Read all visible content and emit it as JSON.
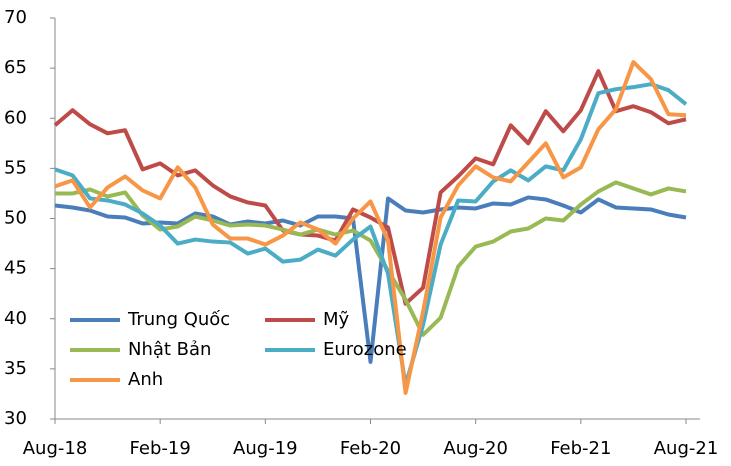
{
  "chart_data": {
    "type": "line",
    "categories": [
      "Aug-18",
      null,
      null,
      null,
      null,
      null,
      "Feb-19",
      null,
      null,
      null,
      null,
      null,
      "Aug-19",
      null,
      null,
      null,
      null,
      null,
      "Feb-20",
      null,
      null,
      null,
      null,
      null,
      "Aug-20",
      null,
      null,
      null,
      null,
      null,
      "Feb-21",
      null,
      null,
      null,
      null,
      null,
      "Aug-21"
    ],
    "series": [
      {
        "name": "Trung Quốc",
        "color": "#4a7ebb",
        "values": [
          51.3,
          51.1,
          50.8,
          50.2,
          50.1,
          49.5,
          49.6,
          49.5,
          50.5,
          50.2,
          49.4,
          49.7,
          49.5,
          49.8,
          49.3,
          50.2,
          50.2,
          50.0,
          35.7,
          52.0,
          50.8,
          50.6,
          50.9,
          51.1,
          51.0,
          51.5,
          51.4,
          52.1,
          51.9,
          51.3,
          50.6,
          51.9,
          51.1,
          51.0,
          50.9,
          50.4,
          50.1
        ]
      },
      {
        "name": "Mỹ",
        "color": "#be4b48",
        "values": [
          59.3,
          60.8,
          59.4,
          58.5,
          58.8,
          54.9,
          55.5,
          54.3,
          54.8,
          53.3,
          52.2,
          51.6,
          51.3,
          48.8,
          48.4,
          48.3,
          47.8,
          50.9,
          50.1,
          49.1,
          41.5,
          43.1,
          52.6,
          54.2,
          56.0,
          55.4,
          59.3,
          57.5,
          60.7,
          58.7,
          60.8,
          64.7,
          60.7,
          61.2,
          60.6,
          59.5,
          59.9
        ]
      },
      {
        "name": "Nhật Bản",
        "color": "#98b954",
        "values": [
          52.5,
          52.5,
          52.9,
          52.2,
          52.6,
          50.3,
          48.9,
          49.2,
          50.2,
          49.8,
          49.3,
          49.4,
          49.3,
          48.9,
          48.4,
          48.9,
          48.4,
          48.8,
          47.8,
          44.8,
          41.9,
          38.4,
          40.1,
          45.2,
          47.2,
          47.7,
          48.7,
          49.0,
          50.0,
          49.8,
          51.4,
          52.7,
          53.6,
          53.0,
          52.4,
          53.0,
          52.7
        ]
      },
      {
        "name": "Eurozone",
        "color": "#4bacc6",
        "values": [
          54.9,
          54.3,
          52.0,
          51.8,
          51.4,
          50.5,
          49.3,
          47.5,
          47.9,
          47.7,
          47.6,
          46.5,
          47.0,
          45.7,
          45.9,
          46.9,
          46.3,
          47.9,
          49.2,
          44.5,
          33.4,
          39.4,
          47.4,
          51.8,
          51.7,
          53.7,
          54.8,
          53.8,
          55.2,
          54.8,
          57.9,
          62.5,
          62.9,
          63.1,
          63.4,
          62.8,
          61.4
        ]
      },
      {
        "name": "Anh",
        "color": "#f79646",
        "values": [
          53.2,
          53.8,
          51.1,
          53.1,
          54.2,
          52.8,
          52.0,
          55.1,
          53.1,
          49.4,
          48.0,
          48.0,
          47.4,
          48.3,
          49.6,
          48.9,
          47.5,
          50.0,
          51.7,
          47.8,
          32.6,
          40.7,
          50.1,
          53.3,
          55.2,
          54.1,
          53.7,
          55.6,
          57.5,
          54.1,
          55.1,
          58.9,
          60.9,
          65.6,
          63.9,
          60.4,
          60.3
        ]
      }
    ],
    "ylim": [
      30,
      70
    ],
    "yticks": [
      30,
      35,
      40,
      45,
      50,
      55,
      60,
      65,
      70
    ]
  }
}
